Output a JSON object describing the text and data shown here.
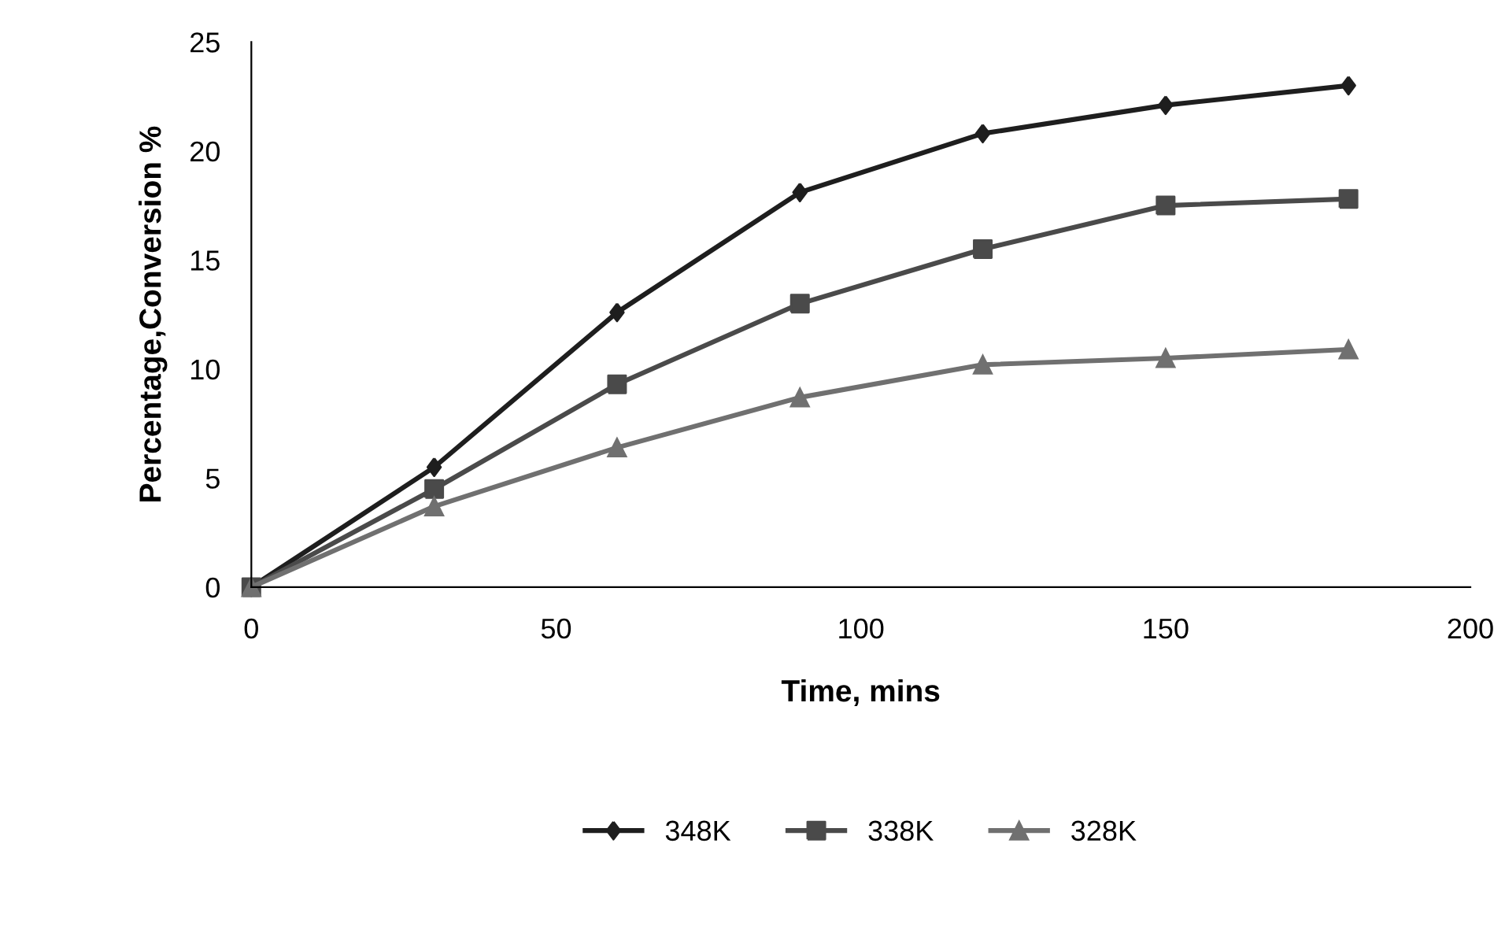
{
  "chart_data": {
    "type": "line",
    "xlabel": "Time, mins",
    "ylabel": "Percentage,Conversion %",
    "x": [
      0,
      30,
      60,
      90,
      120,
      150,
      180
    ],
    "series": [
      {
        "name": "348K",
        "color": "#1e1e1e",
        "marker": "diamond",
        "values": [
          0,
          5.5,
          12.6,
          18.1,
          20.8,
          22.1,
          23.0
        ]
      },
      {
        "name": "338K",
        "color": "#4a4a4a",
        "marker": "square",
        "values": [
          0,
          4.5,
          9.3,
          13.0,
          15.5,
          17.5,
          17.8
        ]
      },
      {
        "name": "328K",
        "color": "#707070",
        "marker": "triangle",
        "values": [
          0,
          3.7,
          6.4,
          8.7,
          10.2,
          10.5,
          10.9
        ]
      }
    ],
    "xlim": [
      0,
      200
    ],
    "ylim": [
      0,
      25
    ],
    "xticks": [
      0,
      50,
      100,
      150,
      200
    ],
    "yticks": [
      0,
      5,
      10,
      15,
      20,
      25
    ],
    "grid": false,
    "legend": "bottom",
    "line_style": "solid"
  }
}
